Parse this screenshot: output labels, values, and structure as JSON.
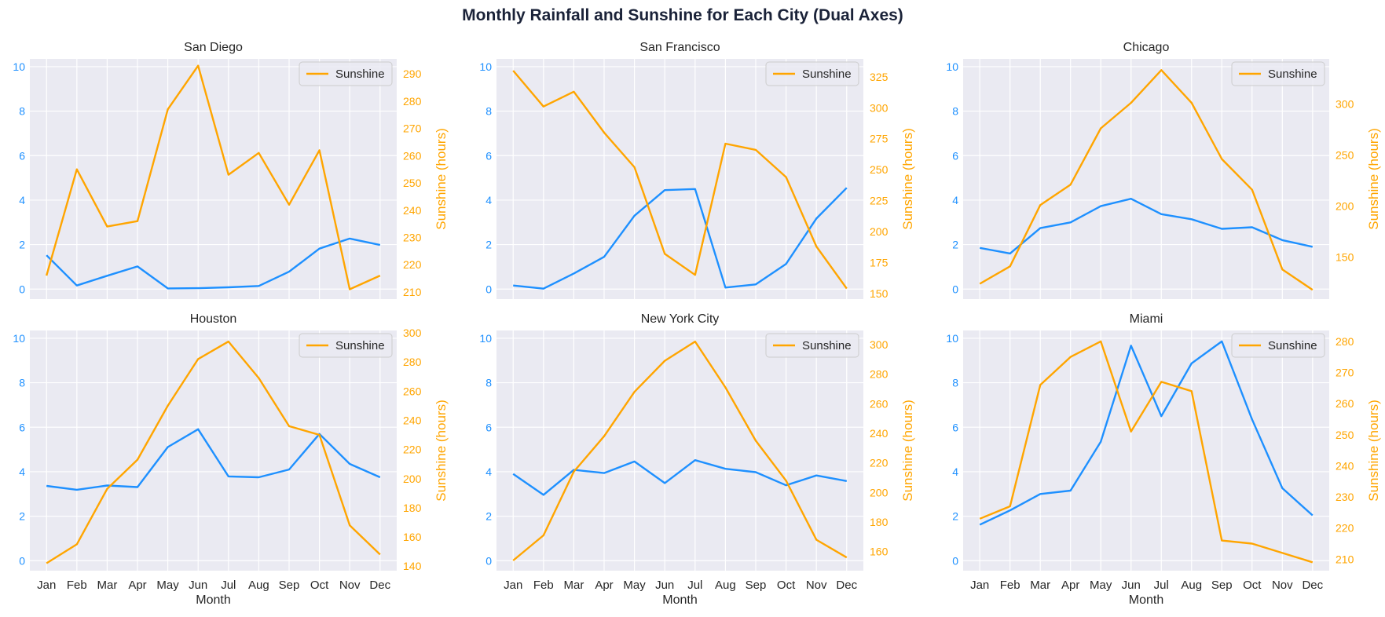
{
  "title": "Monthly Rainfall and Sunshine for Each City (Dual Axes)",
  "colors": {
    "rainfall": "#1e90ff",
    "sunshine": "#ffa500",
    "panel_bg": "#eaeaf2",
    "grid": "#ffffff"
  },
  "chart_data": [
    {
      "type": "line",
      "title": "San Diego",
      "xlabel": "",
      "categories": [
        "Jan",
        "Feb",
        "Mar",
        "Apr",
        "May",
        "Jun",
        "Jul",
        "Aug",
        "Sep",
        "Oct",
        "Nov",
        "Dec"
      ],
      "left_axis": {
        "label": "",
        "ylim": [
          -0.45,
          10.35
        ],
        "ticks": [
          0,
          2,
          4,
          6,
          8,
          10
        ]
      },
      "right_axis": {
        "label": "Sunshine (hours)",
        "ylim": [
          207.4,
          295.5
        ],
        "ticks": [
          210,
          220,
          230,
          240,
          250,
          260,
          270,
          280,
          290
        ]
      },
      "series": [
        {
          "axis": "left",
          "values": [
            1.52,
            0.16,
            0.6,
            1.02,
            0.03,
            0.04,
            0.08,
            0.14,
            0.78,
            1.82,
            2.27,
            1.98
          ]
        },
        {
          "name": "Sunshine",
          "axis": "right",
          "values": [
            216,
            255,
            234,
            236,
            277,
            293,
            253,
            261,
            242,
            262,
            211,
            216
          ]
        }
      ],
      "legend": {
        "entries": [
          "Sunshine"
        ],
        "position": "top-right"
      },
      "grid": true
    },
    {
      "type": "line",
      "title": "San Francisco",
      "xlabel": "",
      "categories": [
        "Jan",
        "Feb",
        "Mar",
        "Apr",
        "May",
        "Jun",
        "Jul",
        "Aug",
        "Sep",
        "Oct",
        "Nov",
        "Dec"
      ],
      "left_axis": {
        "label": "",
        "ylim": [
          -0.45,
          10.35
        ],
        "ticks": [
          0,
          2,
          4,
          6,
          8,
          10
        ]
      },
      "right_axis": {
        "label": "Sunshine (hours)",
        "ylim": [
          145.5,
          339.5
        ],
        "ticks": [
          150,
          175,
          200,
          225,
          250,
          275,
          300,
          325
        ]
      },
      "series": [
        {
          "axis": "left",
          "values": [
            0.16,
            0.02,
            0.7,
            1.45,
            3.3,
            4.45,
            4.5,
            0.07,
            0.21,
            1.13,
            3.17,
            4.55
          ]
        },
        {
          "name": "Sunshine",
          "axis": "right",
          "values": [
            330,
            301,
            313,
            280,
            252,
            182,
            165,
            271,
            266,
            244,
            188,
            154
          ]
        }
      ],
      "legend": {
        "entries": [
          "Sunshine"
        ],
        "position": "top-right"
      },
      "grid": true
    },
    {
      "type": "line",
      "title": "Chicago",
      "xlabel": "",
      "categories": [
        "Jan",
        "Feb",
        "Mar",
        "Apr",
        "May",
        "Jun",
        "Jul",
        "Aug",
        "Sep",
        "Oct",
        "Nov",
        "Dec"
      ],
      "left_axis": {
        "label": "",
        "ylim": [
          -0.45,
          10.35
        ],
        "ticks": [
          0,
          2,
          4,
          6,
          8,
          10
        ]
      },
      "right_axis": {
        "label": "Sunshine (hours)",
        "ylim": [
          109,
          344
        ],
        "ticks": [
          150,
          200,
          250,
          300
        ]
      },
      "series": [
        {
          "axis": "left",
          "values": [
            1.85,
            1.6,
            2.74,
            3.0,
            3.73,
            4.06,
            3.37,
            3.14,
            2.71,
            2.78,
            2.2,
            1.9
          ]
        },
        {
          "name": "Sunshine",
          "axis": "right",
          "values": [
            124,
            141,
            201,
            221,
            276,
            301,
            333,
            301,
            246,
            216,
            138,
            118
          ]
        }
      ],
      "legend": {
        "entries": [
          "Sunshine"
        ],
        "position": "top-right"
      },
      "grid": true
    },
    {
      "type": "line",
      "title": "Houston",
      "xlabel": "Month",
      "categories": [
        "Jan",
        "Feb",
        "Mar",
        "Apr",
        "May",
        "Jun",
        "Jul",
        "Aug",
        "Sep",
        "Oct",
        "Nov",
        "Dec"
      ],
      "left_axis": {
        "label": "",
        "ylim": [
          -0.45,
          10.35
        ],
        "ticks": [
          0,
          2,
          4,
          6,
          8,
          10
        ]
      },
      "right_axis": {
        "label": "Sunshine (hours)",
        "ylim": [
          136.9,
          301.6
        ],
        "ticks": [
          140,
          160,
          180,
          200,
          220,
          240,
          260,
          280,
          300
        ]
      },
      "series": [
        {
          "axis": "left",
          "values": [
            3.36,
            3.19,
            3.38,
            3.31,
            5.11,
            5.91,
            3.79,
            3.75,
            4.1,
            5.7,
            4.35,
            3.75
          ]
        },
        {
          "name": "Sunshine",
          "axis": "right",
          "values": [
            142,
            155,
            193,
            213,
            250,
            282,
            294,
            269,
            236,
            230,
            168,
            148
          ]
        }
      ],
      "legend": {
        "entries": [
          "Sunshine"
        ],
        "position": "top-right"
      },
      "grid": true
    },
    {
      "type": "line",
      "title": "New York City",
      "xlabel": "Month",
      "categories": [
        "Jan",
        "Feb",
        "Mar",
        "Apr",
        "May",
        "Jun",
        "Jul",
        "Aug",
        "Sep",
        "Oct",
        "Nov",
        "Dec"
      ],
      "left_axis": {
        "label": "",
        "ylim": [
          -0.45,
          10.35
        ],
        "ticks": [
          0,
          2,
          4,
          6,
          8,
          10
        ]
      },
      "right_axis": {
        "label": "Sunshine (hours)",
        "ylim": [
          147.1,
          309.5
        ],
        "ticks": [
          160,
          180,
          200,
          220,
          240,
          260,
          280,
          300
        ]
      },
      "series": [
        {
          "axis": "left",
          "values": [
            3.9,
            2.96,
            4.08,
            3.94,
            4.46,
            3.49,
            4.52,
            4.13,
            3.98,
            3.39,
            3.83,
            3.58
          ]
        },
        {
          "name": "Sunshine",
          "axis": "right",
          "values": [
            154,
            171,
            214,
            238,
            268,
            289,
            302,
            271,
            235,
            208,
            168,
            156
          ]
        }
      ],
      "legend": {
        "entries": [
          "Sunshine"
        ],
        "position": "top-right"
      },
      "grid": true
    },
    {
      "type": "line",
      "title": "Miami",
      "xlabel": "Month",
      "categories": [
        "Jan",
        "Feb",
        "Mar",
        "Apr",
        "May",
        "Jun",
        "Jul",
        "Aug",
        "Sep",
        "Oct",
        "Nov",
        "Dec"
      ],
      "left_axis": {
        "label": "",
        "ylim": [
          -0.45,
          10.35
        ],
        "ticks": [
          0,
          2,
          4,
          6,
          8,
          10
        ]
      },
      "right_axis": {
        "label": "Sunshine (hours)",
        "ylim": [
          206.3,
          283.5
        ],
        "ticks": [
          210,
          220,
          230,
          240,
          250,
          260,
          270,
          280
        ]
      },
      "series": [
        {
          "axis": "left",
          "values": [
            1.62,
            2.26,
            3.0,
            3.15,
            5.35,
            9.67,
            6.5,
            8.87,
            9.86,
            6.35,
            3.26,
            2.04
          ]
        },
        {
          "name": "Sunshine",
          "axis": "right",
          "values": [
            223,
            227,
            266,
            275,
            280,
            251,
            267,
            264,
            216,
            215,
            212,
            209
          ]
        }
      ],
      "legend": {
        "entries": [
          "Sunshine"
        ],
        "position": "top-right"
      },
      "grid": true
    }
  ]
}
